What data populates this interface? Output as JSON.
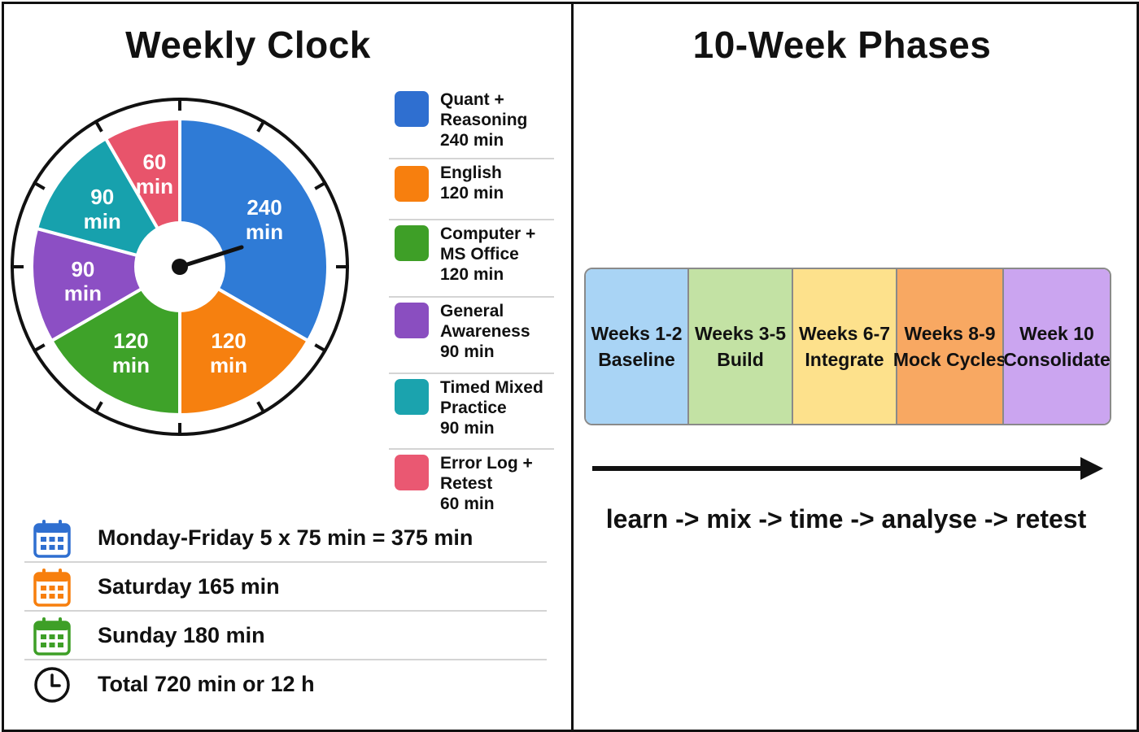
{
  "titles": {
    "left": "Weekly Clock",
    "right": "10-Week Phases"
  },
  "chart_data": {
    "type": "pie",
    "slices": [
      {
        "label": "Quant + Reasoning",
        "value": 240,
        "display": [
          "240",
          "min"
        ],
        "color": "#2f7bd6"
      },
      {
        "label": "English",
        "value": 120,
        "display": [
          "120",
          "min"
        ],
        "color": "#f6800f"
      },
      {
        "label": "Computer + MS Office",
        "value": 120,
        "display": [
          "120",
          "min"
        ],
        "color": "#3ea229"
      },
      {
        "label": "General Awareness",
        "value": 90,
        "display": [
          "90",
          "min"
        ],
        "color": "#8c4fc4"
      },
      {
        "label": "Timed Mixed Practice",
        "value": 90,
        "display": [
          "90",
          "min"
        ],
        "color": "#17a1ad"
      },
      {
        "label": "Error Log + Retest",
        "value": 60,
        "display": [
          "60",
          "min"
        ],
        "color": "#e8546b"
      }
    ],
    "start_angle_deg": 0,
    "direction": "clockwise"
  },
  "legend": [
    {
      "lines": [
        "Quant +",
        "Reasoning",
        "240 min"
      ],
      "color": "#2f6fd0"
    },
    {
      "lines": [
        "English",
        "120 min"
      ],
      "color": "#f77f0e"
    },
    {
      "lines": [
        "Computer +",
        "MS Office",
        "120 min"
      ],
      "color": "#3e9f27"
    },
    {
      "lines": [
        "General",
        "Awareness",
        "90 min"
      ],
      "color": "#8a4ec0"
    },
    {
      "lines": [
        "Timed Mixed",
        "Practice",
        "90 min"
      ],
      "color": "#1ba3ae"
    },
    {
      "lines": [
        "Error Log +",
        "Retest",
        "60 min"
      ],
      "color": "#ea5872"
    }
  ],
  "schedule": [
    {
      "text": "Monday-Friday 5 x 75 min = 375 min",
      "icon": "calendar-icon",
      "color": "#2f6fd0"
    },
    {
      "text": "Saturday 165 min",
      "icon": "calendar-icon",
      "color": "#f77f0e"
    },
    {
      "text": "Sunday 180 min",
      "icon": "calendar-icon",
      "color": "#3e9f27"
    },
    {
      "text": "Total 720 min or 12 h",
      "icon": "clock-icon",
      "color": "#111111"
    }
  ],
  "phases": [
    {
      "weeks": "Weeks 1-2",
      "name": "Baseline",
      "color": "#a9d4f5"
    },
    {
      "weeks": "Weeks 3-5",
      "name": "Build",
      "color": "#c3e2a4"
    },
    {
      "weeks": "Weeks 6-7",
      "name": "Integrate",
      "color": "#fde18c"
    },
    {
      "weeks": "Weeks 8-9",
      "name": "Mock Cycles",
      "color": "#f8a862"
    },
    {
      "weeks": "Week 10",
      "name": "Consolidate",
      "color": "#cba5f0"
    }
  ],
  "process": "learn -> mix -> time -> analyse -> retest"
}
